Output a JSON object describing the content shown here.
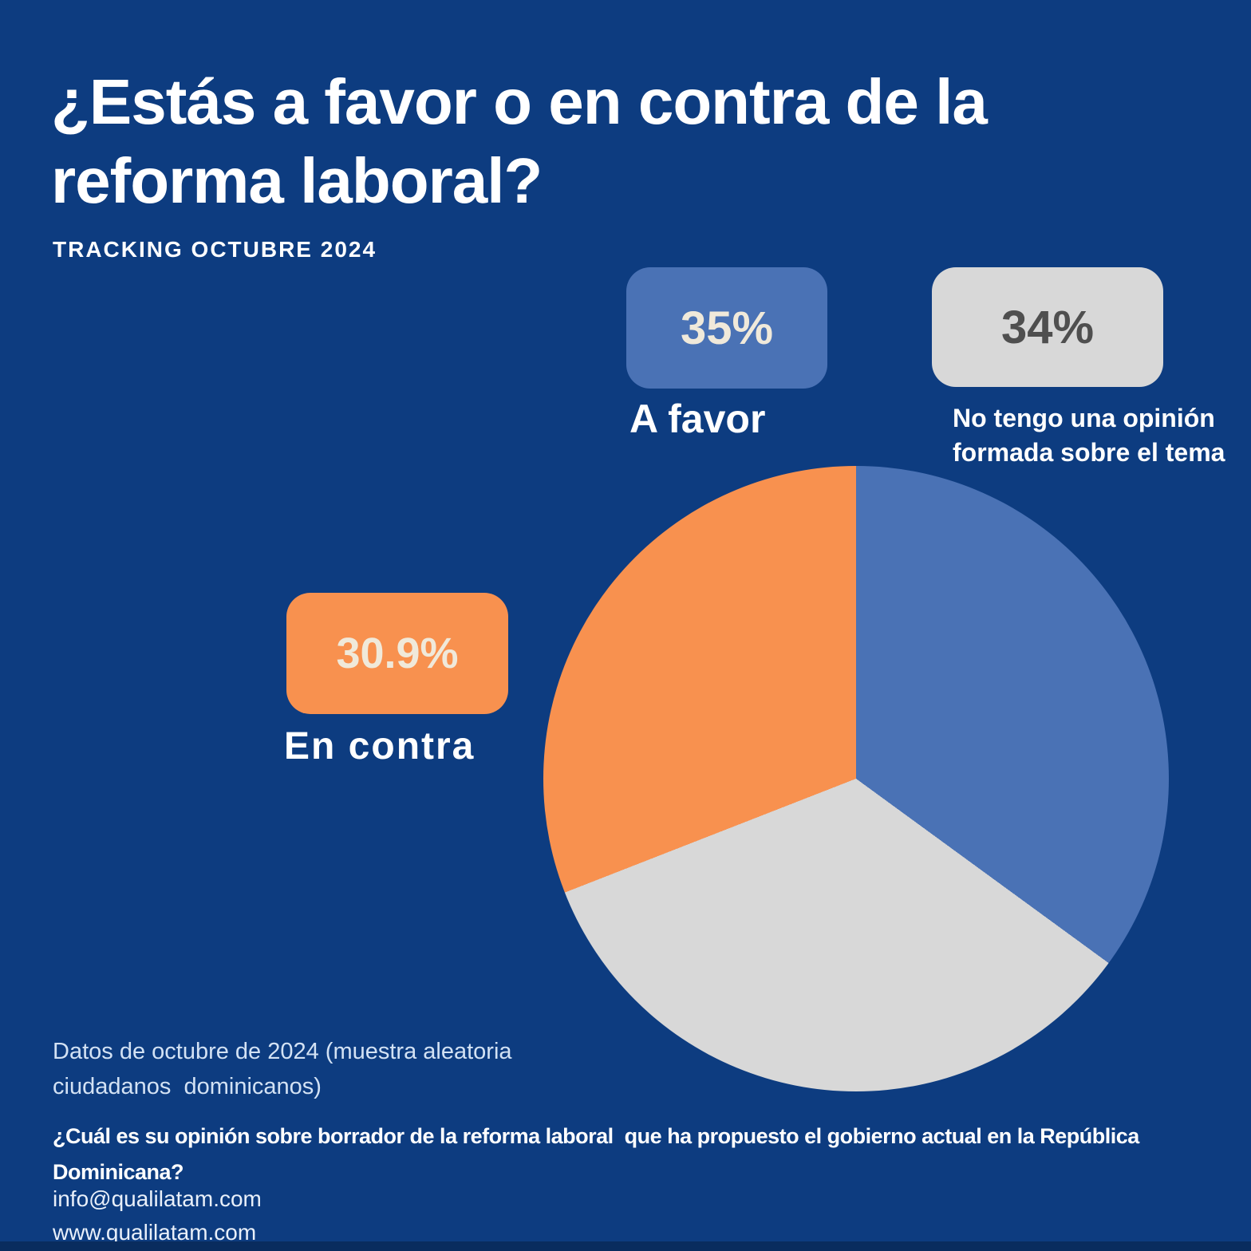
{
  "background_color": "#0d3c80",
  "bottom_strip_color": "#092c5e",
  "header": {
    "title": "¿Estás a favor o en contra de la\nreforma laboral?",
    "subtitle": "TRACKING OCTUBRE 2024"
  },
  "chart_data": {
    "type": "pie",
    "title": "¿Estás a favor o en contra de la reforma laboral?",
    "subtitle": "TRACKING OCTUBRE 2024",
    "start_angle_deg": 0,
    "direction": "clockwise",
    "slices": [
      {
        "label": "A favor",
        "value": 35,
        "display": "35%",
        "color": "#4a72b5",
        "value_text_color": "#f0e9da"
      },
      {
        "label": "No tengo una opinión formada sobre el tema",
        "value": 34,
        "display": "34%",
        "color": "#d8d8d8",
        "value_text_color": "#4f4f4f"
      },
      {
        "label": "En contra",
        "value": 30.9,
        "display": "30.9%",
        "color": "#f8914f",
        "value_text_color": "#f0e9da"
      }
    ],
    "legend_position": "callouts-around-pie"
  },
  "footer": {
    "note": "Datos de octubre de 2024 (muestra aleatoria\nciudadanos  dominicanos)",
    "question": "¿Cuál es su opinión sobre borrador de la reforma laboral  que ha propuesto el gobierno actual en la República\nDominicana?",
    "email": "info@qualilatam.com",
    "website": "www.qualilatam.com"
  }
}
